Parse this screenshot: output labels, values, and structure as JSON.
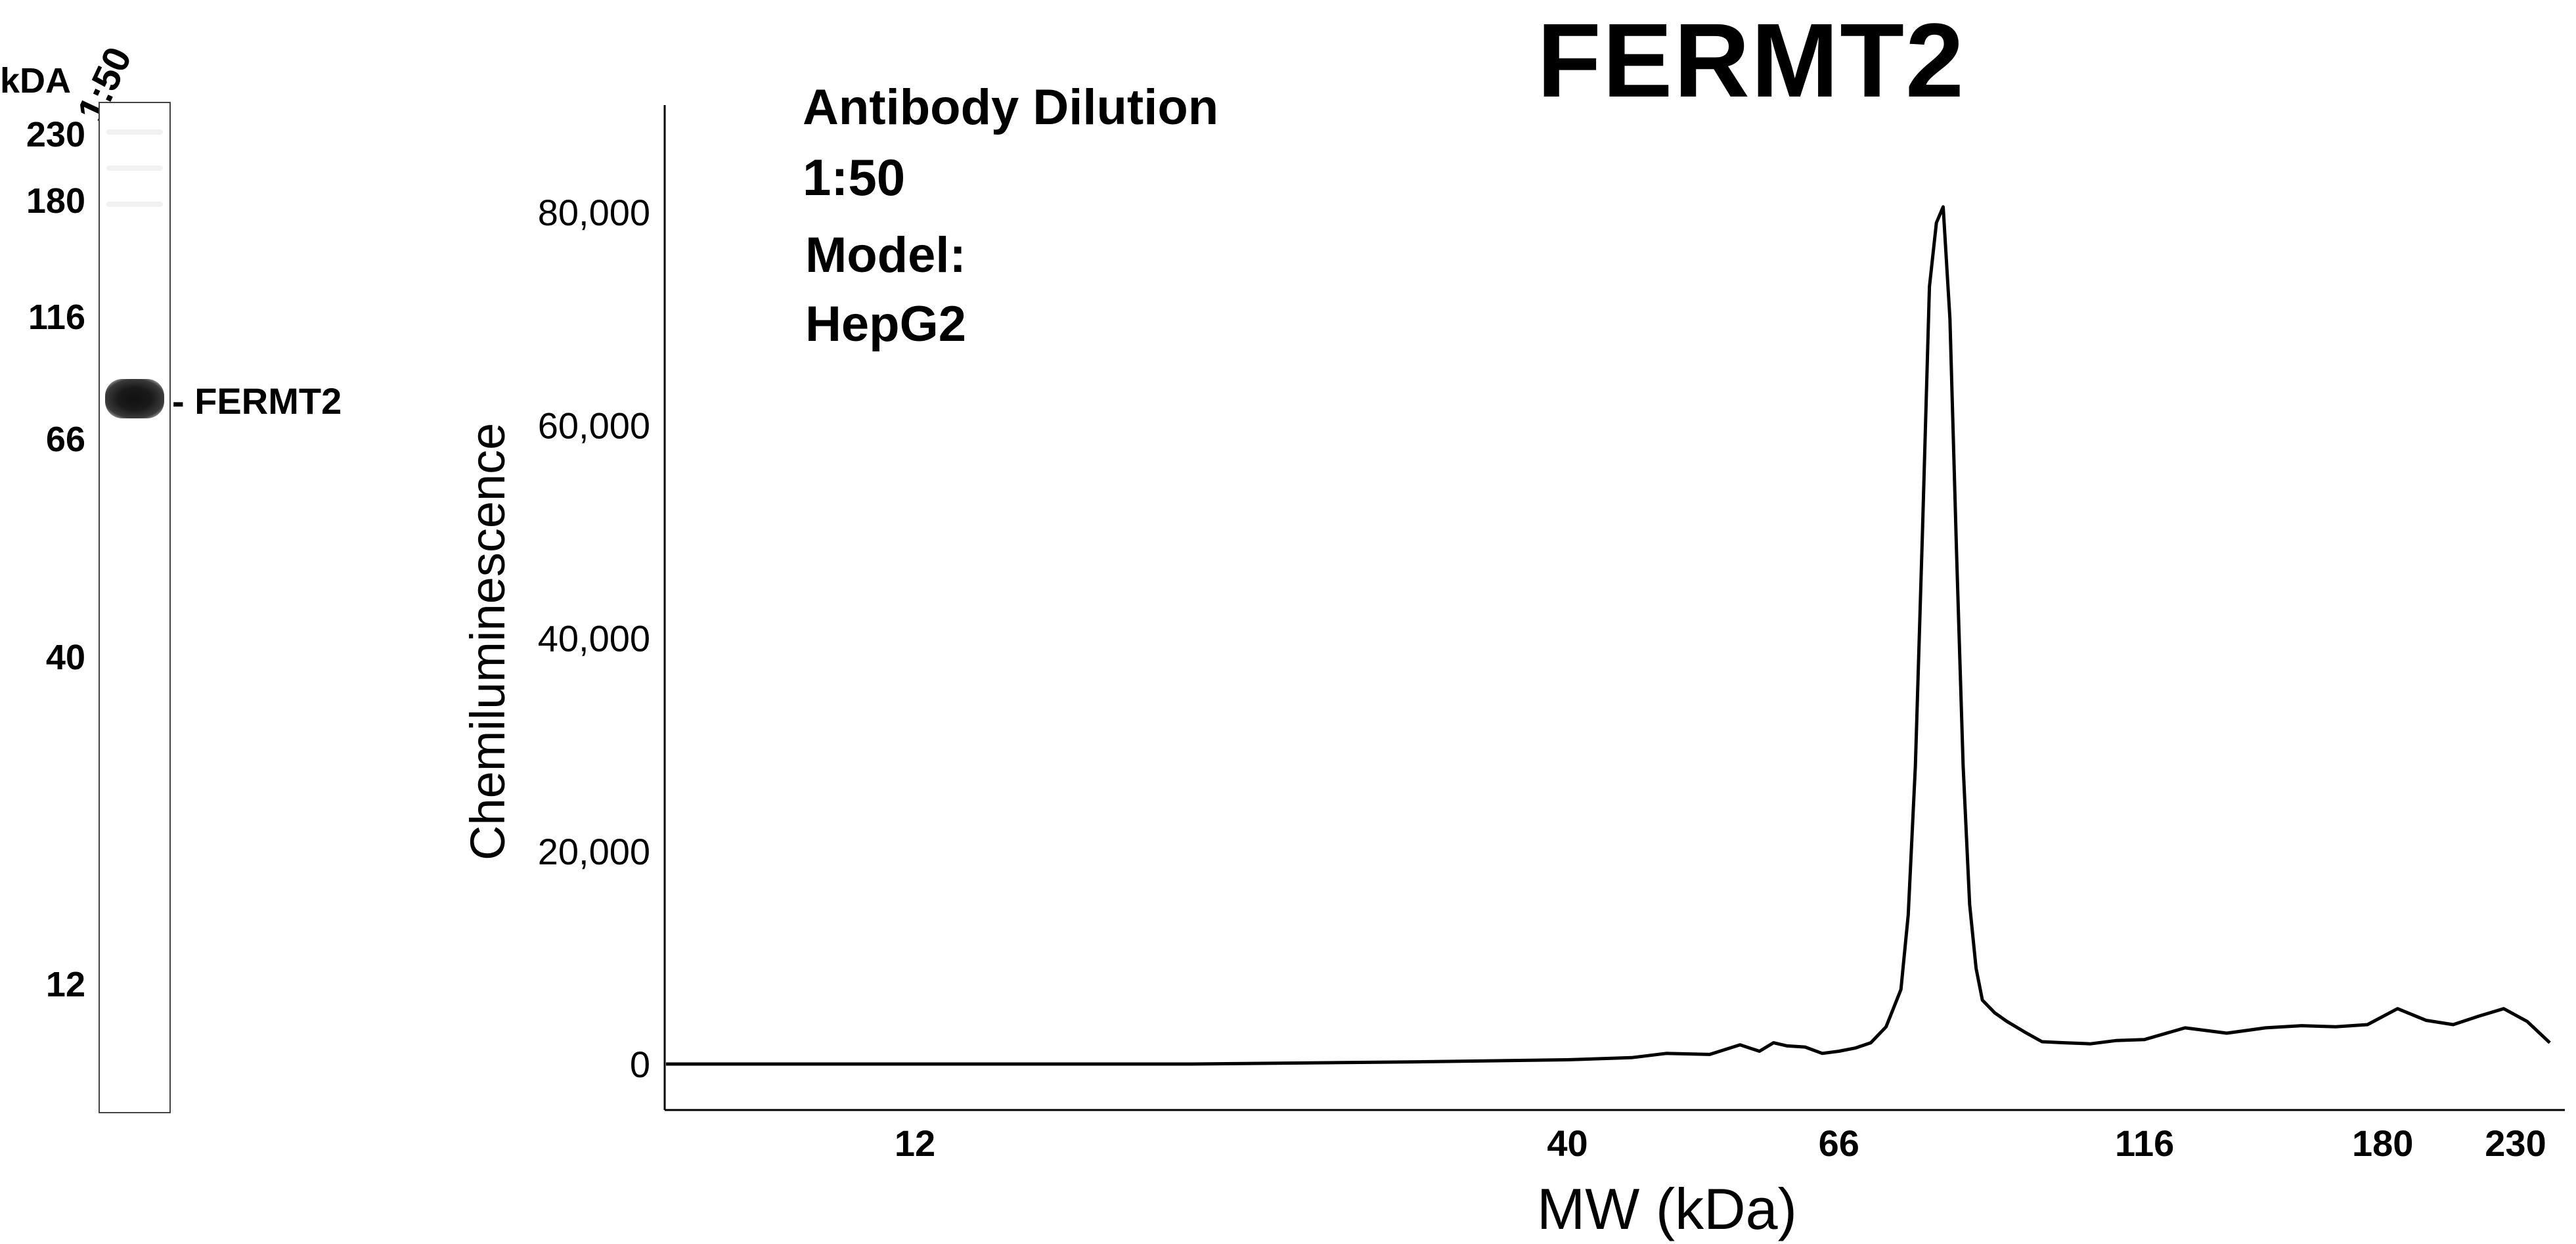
{
  "gel": {
    "kda_label": "kDA",
    "lane_title": "1:50",
    "mw_markers": [
      "230",
      "180",
      "116",
      "66",
      "40",
      "12"
    ],
    "band_label": "- FERMT2"
  },
  "annotations": {
    "line1": "Antibody Dilution",
    "line2": "1:50",
    "line3": "Model:",
    "line4": "HepG2"
  },
  "chart_data": {
    "type": "line",
    "title": "FERMT2",
    "xlabel": "MW (kDa)",
    "ylabel": "Chemiluminescence",
    "ylim": [
      0,
      90000
    ],
    "y_ticks": [
      0,
      20000,
      40000,
      60000,
      80000
    ],
    "y_tick_labels": [
      "0",
      "20,000",
      "40,000",
      "60,000",
      "80,000"
    ],
    "x_tick_labels": [
      "12",
      "40",
      "66",
      "116",
      "180",
      "230"
    ],
    "x_scale": "log",
    "grid": false,
    "series": [
      {
        "x": [
          7,
          12,
          20,
          30,
          40,
          45,
          48,
          52,
          55,
          57,
          58.5,
          60,
          62,
          64,
          66,
          68,
          70,
          72,
          74,
          75,
          76,
          77,
          78,
          79,
          80,
          81,
          82,
          83,
          84,
          85,
          86,
          88,
          90,
          93,
          96,
          100,
          105,
          110,
          116,
          125,
          135,
          145,
          155,
          165,
          175,
          185,
          195,
          205,
          215,
          225,
          235,
          245
        ],
        "y": [
          0,
          0,
          0,
          200,
          400,
          600,
          1000,
          900,
          1800,
          1200,
          2000,
          1700,
          1600,
          1000,
          1200,
          1500,
          2000,
          3500,
          7000,
          14000,
          28000,
          50000,
          73000,
          79000,
          80500,
          70000,
          48000,
          28000,
          15000,
          9000,
          6000,
          4800,
          4000,
          3000,
          2100,
          2000,
          1900,
          2200,
          2300,
          3400,
          2900,
          3400,
          3600,
          3500,
          3700,
          5200,
          4100,
          3700,
          4500,
          5200,
          4000,
          2000
        ]
      }
    ]
  }
}
